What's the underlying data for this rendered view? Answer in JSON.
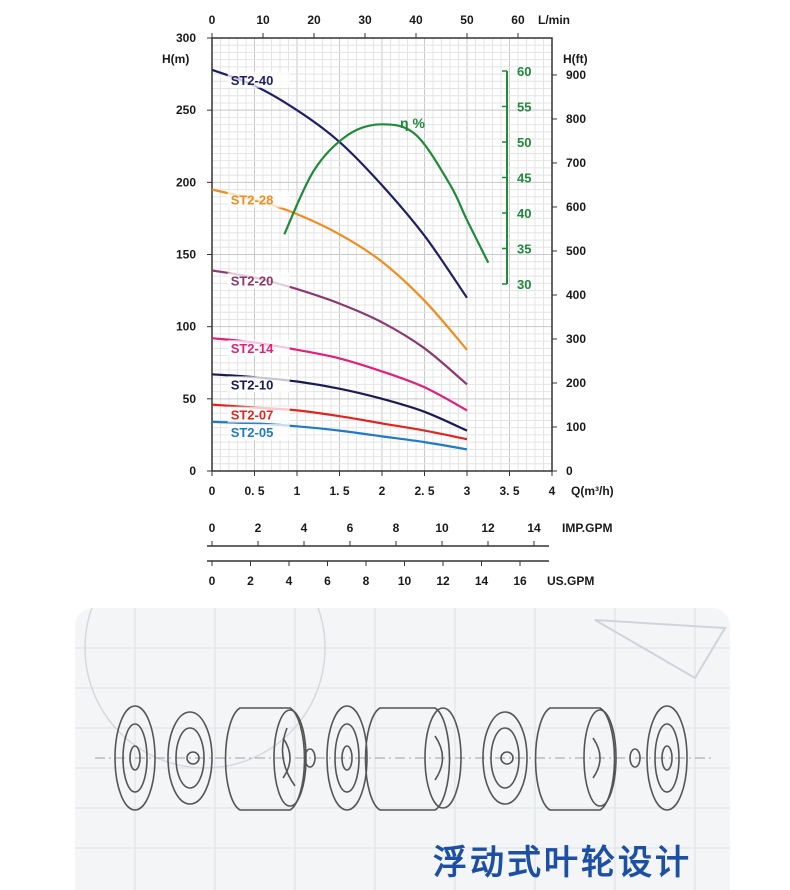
{
  "chart_data": {
    "type": "line",
    "title": "",
    "x_axis": {
      "label": "Q(m³/h)",
      "min": 0,
      "max": 4,
      "ticks": [
        "0",
        "0. 5",
        "1",
        "1. 5",
        "2",
        "2. 5",
        "3",
        "3. 5",
        "4"
      ]
    },
    "top_axis": {
      "label": "L/min",
      "min": 0,
      "max": 66.67,
      "ticks": [
        "0",
        "10",
        "20",
        "30",
        "40",
        "50",
        "60"
      ]
    },
    "y_left": {
      "label": "H(m)",
      "min": 0,
      "max": 300,
      "ticks": [
        "0",
        "50",
        "100",
        "150",
        "200",
        "250",
        "300"
      ]
    },
    "y_right": {
      "label": "H(ft)",
      "min": 0,
      "max": 984,
      "ticks": [
        "0",
        "100",
        "200",
        "300",
        "400",
        "500",
        "600",
        "700",
        "800",
        "900"
      ]
    },
    "y_eff": {
      "min": 30,
      "max": 60,
      "ticks": [
        "30",
        "35",
        "40",
        "45",
        "50",
        "55",
        "60"
      ],
      "color": "#1f8a3a"
    },
    "imp_axis": {
      "label": "IMP.GPM",
      "ticks": [
        "0",
        "2",
        "4",
        "6",
        "8",
        "10",
        "12",
        "14"
      ]
    },
    "us_axis": {
      "label": "US.GPM",
      "ticks": [
        "0",
        "2",
        "4",
        "6",
        "8",
        "10",
        "12",
        "14",
        "16"
      ]
    },
    "series": [
      {
        "name": "ST2-40",
        "color": "#1f1f66",
        "x": [
          0,
          0.5,
          1,
          1.5,
          2,
          2.5,
          3
        ],
        "y": [
          278,
          267,
          250,
          228,
          198,
          163,
          120
        ]
      },
      {
        "name": "ST2-28",
        "color": "#f28c1c",
        "x": [
          0,
          0.5,
          1,
          1.5,
          2,
          2.5,
          3
        ],
        "y": [
          195,
          188,
          178,
          164,
          145,
          118,
          84
        ]
      },
      {
        "name": "ST2-20",
        "color": "#8a3a6e",
        "x": [
          0,
          0.5,
          1,
          1.5,
          2,
          2.5,
          3
        ],
        "y": [
          139,
          134,
          126,
          116,
          103,
          85,
          60
        ]
      },
      {
        "name": "ST2-14",
        "color": "#e0207a",
        "x": [
          0,
          0.5,
          1,
          1.5,
          2,
          2.5,
          3
        ],
        "y": [
          92,
          89,
          84,
          78,
          69,
          58,
          42
        ]
      },
      {
        "name": "ST2-10",
        "color": "#1a1a55",
        "x": [
          0,
          0.5,
          1,
          1.5,
          2,
          2.5,
          3
        ],
        "y": [
          67,
          65,
          62,
          57,
          50,
          41,
          28
        ]
      },
      {
        "name": "ST2-07",
        "color": "#e0261f",
        "x": [
          0,
          0.5,
          1,
          1.5,
          2,
          2.5,
          3
        ],
        "y": [
          46,
          44,
          42,
          38,
          33,
          28,
          22
        ]
      },
      {
        "name": "ST2-05",
        "color": "#1f7ac8",
        "x": [
          0,
          0.5,
          1,
          1.5,
          2,
          2.5,
          3
        ],
        "y": [
          34,
          33,
          31,
          28,
          24,
          20,
          15
        ]
      }
    ],
    "efficiency": {
      "name": "η %",
      "color": "#1f8a3a",
      "x": [
        0.85,
        1.2,
        1.6,
        2.0,
        2.4,
        2.8,
        3.0,
        3.25
      ],
      "eff": [
        37,
        46,
        51,
        52.5,
        51,
        44,
        39,
        33
      ]
    }
  },
  "banner": {
    "title": "浮动式叶轮设计"
  }
}
